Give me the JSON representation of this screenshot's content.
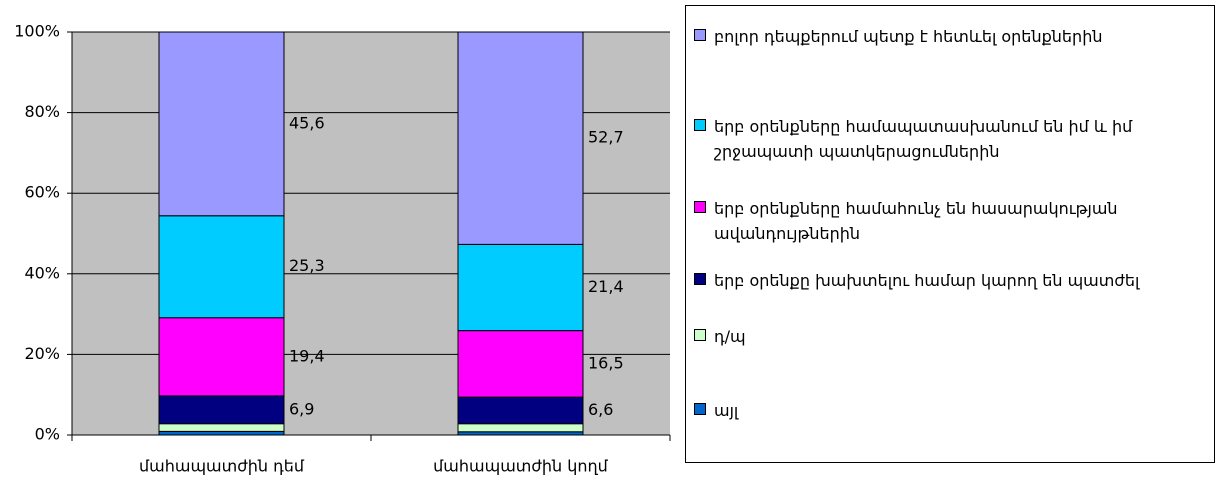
{
  "chart_data": {
    "type": "stacked_bar",
    "categories": [
      "մահապատժին դեմ",
      "մահապատժին կողմ"
    ],
    "series": [
      {
        "name": "այլ",
        "color": "#0066cc",
        "values": [
          0.9,
          0.8
        ]
      },
      {
        "name": "դ/պ",
        "color": "#ccffcc",
        "values": [
          1.9,
          2.0
        ]
      },
      {
        "name": "երբ օրենքը խախտելու համար կարող են պատժել",
        "color": "#000080",
        "values": [
          6.9,
          6.6
        ],
        "value_labels": [
          "6,9",
          "6,6"
        ]
      },
      {
        "name": "երբ օրենքները համահունչ են հասարակության ավանդույթներին",
        "color": "#ff00ff",
        "values": [
          19.4,
          16.5
        ],
        "value_labels": [
          "19,4",
          "16,5"
        ]
      },
      {
        "name": "երբ օրենքները համապատասխանում են իմ և իմ շրջապատի պատկերացումներին",
        "color": "#00ccff",
        "values": [
          25.3,
          21.4
        ],
        "value_labels": [
          "25,3",
          "21,4"
        ]
      },
      {
        "name": "բոլոր դեպքերում պետք է հետևել օրենքներին",
        "color": "#9999ff",
        "values": [
          45.6,
          52.7
        ],
        "value_labels": [
          "45,6",
          "52,7"
        ]
      }
    ],
    "ylim": [
      0,
      100
    ],
    "yticks": [
      {
        "value": 0,
        "label": "0%"
      },
      {
        "value": 20,
        "label": "20%"
      },
      {
        "value": 40,
        "label": "40%"
      },
      {
        "value": 60,
        "label": "60%"
      },
      {
        "value": 80,
        "label": "80%"
      },
      {
        "value": 100,
        "label": "100%"
      }
    ],
    "grid": true,
    "plot_background": "#c0c0c0",
    "legend": "right"
  }
}
